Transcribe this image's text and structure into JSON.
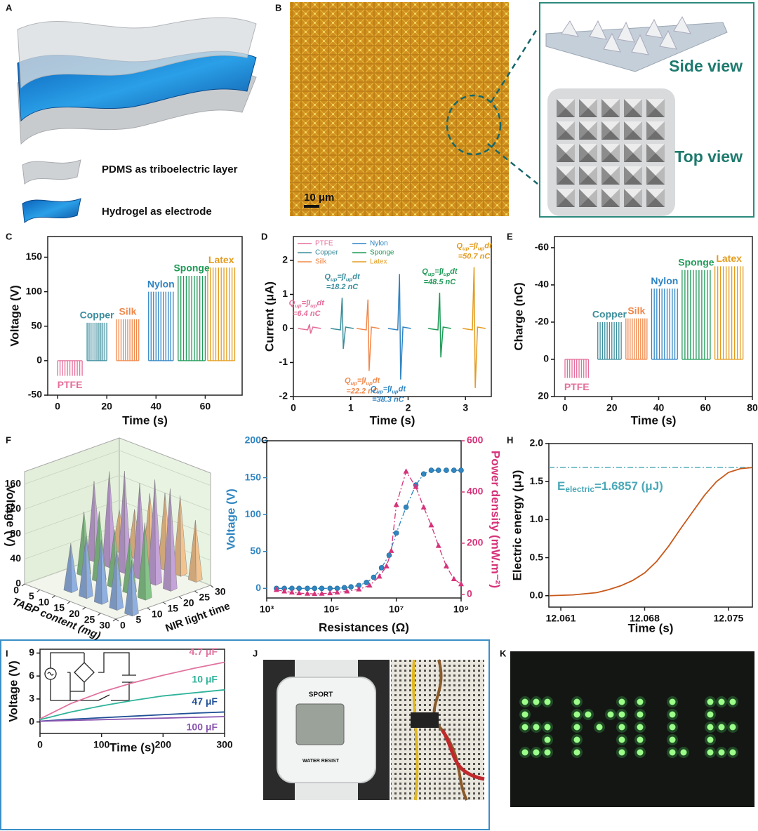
{
  "panels": {
    "A": {
      "letter": "A",
      "labels": [
        "PDMS as triboelectric layer",
        "Hydrogel as electrode"
      ]
    },
    "B": {
      "letter": "B",
      "scale_bar": "10 μm",
      "views": [
        "Side view",
        "Top view"
      ]
    },
    "J": {
      "letter": "J",
      "watch": [
        "SPORT",
        "WATER RESIST"
      ]
    },
    "K": {
      "letter": "K"
    }
  },
  "chart_data": [
    {
      "panel": "C",
      "type": "pulse",
      "xlabel": "Time (s)",
      "ylabel": "Voltage (V)",
      "xlim": [
        -4,
        75
      ],
      "xticks": [
        0,
        20,
        40,
        60
      ],
      "ylim": [
        -50,
        180
      ],
      "yticks": [
        -50,
        0,
        50,
        100,
        150
      ],
      "series": [
        {
          "name": "PTFE",
          "color": "#e46e9a",
          "x": [
            0,
            10
          ],
          "values": [
            0,
            -22
          ]
        },
        {
          "name": "Copper",
          "color": "#3b8d9c",
          "x": [
            12,
            20
          ],
          "values": [
            0,
            55
          ]
        },
        {
          "name": "Silk",
          "color": "#f0874a",
          "x": [
            24,
            33
          ],
          "values": [
            0,
            60
          ]
        },
        {
          "name": "Nylon",
          "color": "#2f84c3",
          "x": [
            37,
            47
          ],
          "values": [
            0,
            100
          ]
        },
        {
          "name": "Sponge",
          "color": "#1e9a57",
          "x": [
            49,
            60
          ],
          "values": [
            0,
            123
          ]
        },
        {
          "name": "Latex",
          "color": "#e39c1e",
          "x": [
            61,
            72
          ],
          "values": [
            0,
            135
          ]
        }
      ]
    },
    {
      "panel": "D",
      "type": "spike",
      "xlabel": "Time (s)",
      "ylabel": "Current (μA)",
      "xlim": [
        0,
        3.45
      ],
      "xticks": [
        0,
        1,
        2,
        3
      ],
      "ylim": [
        -2,
        2.7
      ],
      "yticks": [
        -2,
        -1,
        0,
        1,
        2
      ],
      "formula": [
        "Q",
        "up",
        "=∫",
        "I",
        "up",
        "dt"
      ],
      "series": [
        {
          "name": "PTFE",
          "color": "#e46e9a",
          "x": 0.28,
          "values": [
            0.12,
            -0.15
          ],
          "charge": "=6.4 nC"
        },
        {
          "name": "Copper",
          "color": "#3b8d9c",
          "x": 0.85,
          "values": [
            0.9,
            -0.6
          ],
          "charge": "=18.2 nC"
        },
        {
          "name": "Silk",
          "color": "#f0874a",
          "x": 1.3,
          "values": [
            0.85,
            -1.25
          ],
          "charge": "=22.2 nC"
        },
        {
          "name": "Nylon",
          "color": "#2f84c3",
          "x": 1.85,
          "values": [
            1.6,
            -1.5
          ],
          "charge": "=38.3 nC"
        },
        {
          "name": "Sponge",
          "color": "#1e9a57",
          "x": 2.55,
          "values": [
            1.05,
            -0.85
          ],
          "charge": "=48.5 nC"
        },
        {
          "name": "Latex",
          "color": "#e39c1e",
          "x": 3.15,
          "values": [
            1.8,
            -1.75
          ],
          "charge": "=50.7 nC"
        }
      ]
    },
    {
      "panel": "E",
      "type": "pulse",
      "xlabel": "Time (s)",
      "ylabel": "Charge (nC)",
      "xlim": [
        -4.5,
        80
      ],
      "xticks": [
        0,
        20,
        40,
        60,
        80
      ],
      "ylim": [
        20,
        -66
      ],
      "yticks": [
        -60,
        -40,
        -20,
        0,
        20
      ],
      "series": [
        {
          "name": "PTFE",
          "color": "#e46e9a",
          "x": [
            0,
            10
          ],
          "values": [
            0,
            10
          ]
        },
        {
          "name": "Copper",
          "color": "#3b8d9c",
          "x": [
            14,
            24
          ],
          "values": [
            0,
            -20
          ]
        },
        {
          "name": "Silk",
          "color": "#f0874a",
          "x": [
            26,
            35
          ],
          "values": [
            0,
            -22
          ]
        },
        {
          "name": "Nylon",
          "color": "#2f84c3",
          "x": [
            37,
            48
          ],
          "values": [
            0,
            -38
          ]
        },
        {
          "name": "Sponge",
          "color": "#1e9a57",
          "x": [
            50,
            62
          ],
          "values": [
            0,
            -48
          ]
        },
        {
          "name": "Latex",
          "color": "#e39c1e",
          "x": [
            64,
            76
          ],
          "values": [
            0,
            -50
          ]
        }
      ]
    },
    {
      "panel": "F",
      "type": "bar3d",
      "ylabel": "Voltage (V)",
      "xlabel": "TABP content (mg)",
      "zlabel": "NIR light time",
      "xlim": [
        0,
        30
      ],
      "xticks": [
        0,
        5,
        10,
        15,
        20,
        25,
        30
      ],
      "zlim": [
        0,
        30
      ],
      "zticks": [
        0,
        5,
        10,
        15,
        20,
        25,
        30
      ],
      "ylim": [
        0,
        180
      ],
      "yticks": [
        0,
        40,
        80,
        120,
        160
      ],
      "series": [
        {
          "color": "#f2c38f",
          "x": [
            0,
            5,
            10,
            15,
            20,
            25
          ],
          "z": [
            30,
            30,
            30,
            30,
            30,
            30
          ],
          "values": [
            65,
            75,
            110,
            120,
            125,
            95
          ]
        },
        {
          "color": "#c4a3d8",
          "x": [
            0,
            5,
            10,
            15,
            20,
            25
          ],
          "z": [
            22,
            22,
            22,
            22,
            22,
            22
          ],
          "values": [
            125,
            150,
            160,
            150,
            165,
            160
          ]
        },
        {
          "color": "#86c48a",
          "x": [
            5,
            10,
            15,
            20,
            25
          ],
          "z": [
            14,
            14,
            14,
            14,
            14
          ],
          "values": [
            100,
            110,
            90,
            85,
            120
          ]
        },
        {
          "color": "#8fb0e0",
          "x": [
            10,
            15,
            20,
            25,
            30
          ],
          "z": [
            5,
            5,
            5,
            5,
            5
          ],
          "values": [
            75,
            95,
            100,
            90,
            85
          ]
        }
      ]
    },
    {
      "panel": "G",
      "type": "line",
      "xlabel": "Resistances (Ω)",
      "ylabel": "Voltage (V)",
      "y2label": "Power density (mW.m⁻²)",
      "xlog": true,
      "xlim": [
        1000,
        1000000000
      ],
      "xticks": [
        {
          "value": 1000,
          "label": "10³"
        },
        {
          "value": 100000,
          "label": "10⁵"
        },
        {
          "value": 10000000,
          "label": "10⁷"
        },
        {
          "value": 1000000000,
          "label": "10⁹"
        }
      ],
      "ylim": [
        -13,
        200
      ],
      "yticks": [
        0,
        50,
        100,
        150,
        200
      ],
      "y2lim": [
        -14,
        600
      ],
      "y2ticks": [
        0,
        200,
        400,
        600
      ],
      "series": [
        {
          "color": "#2f86c1",
          "marker": "circle",
          "x": [
            2000,
            3500,
            6000,
            10000,
            18000,
            30000,
            50000,
            90000,
            150000,
            250000,
            400000,
            700000,
            1200000,
            2000000,
            3500000,
            6000000,
            10000000,
            20000000,
            40000000,
            70000000,
            120000000,
            200000000,
            350000000,
            600000000,
            1000000000
          ],
          "values": [
            0,
            0,
            0,
            0,
            0,
            0,
            0,
            0,
            0,
            1,
            2,
            4,
            8,
            15,
            28,
            45,
            75,
            110,
            140,
            155,
            160,
            160,
            160,
            160,
            160
          ]
        },
        {
          "color": "#d6337a",
          "marker": "triangle",
          "axis": "y2",
          "x": [
            2000,
            3500,
            6000,
            10000,
            18000,
            30000,
            50000,
            90000,
            150000,
            300000,
            700000,
            1500000,
            3000000,
            5000000,
            7000000,
            10000000,
            20000000,
            40000000,
            70000000,
            120000000,
            200000000,
            350000000,
            600000000,
            1000000000
          ],
          "values": [
            18,
            12,
            8,
            5,
            3,
            2,
            3,
            5,
            8,
            12,
            20,
            35,
            70,
            110,
            170,
            350,
            480,
            420,
            340,
            270,
            190,
            110,
            60,
            40
          ]
        }
      ]
    },
    {
      "panel": "H",
      "type": "line",
      "xlabel": "Time (s)",
      "ylabel": "Electric energy (μJ)",
      "xlim": [
        12.06,
        12.077
      ],
      "xticks": [
        12.061,
        12.068,
        12.075
      ],
      "ylim": [
        -0.15,
        2
      ],
      "yticks": [
        {
          "value": 0,
          "label": "0.0"
        },
        0.5,
        {
          "value": 1,
          "label": "1.0"
        },
        1.5,
        {
          "value": 2,
          "label": "2.0"
        }
      ],
      "reference": 1.6857,
      "reference_label": [
        "E",
        "electric",
        "=1.6857 (μJ)"
      ],
      "reference_color": "#4aa8b8",
      "series": [
        {
          "color": "#c8581a",
          "x": [
            12.06,
            12.062,
            12.064,
            12.065,
            12.066,
            12.067,
            12.068,
            12.069,
            12.07,
            12.071,
            12.072,
            12.073,
            12.074,
            12.075,
            12.076,
            12.077
          ],
          "values": [
            0,
            0.01,
            0.04,
            0.08,
            0.13,
            0.2,
            0.3,
            0.45,
            0.65,
            0.88,
            1.1,
            1.32,
            1.5,
            1.62,
            1.67,
            1.685
          ]
        }
      ]
    },
    {
      "panel": "I",
      "type": "line",
      "xlabel": "Time (s)",
      "ylabel": "Voltage (V)",
      "xlim": [
        0,
        300
      ],
      "xticks": [
        0,
        100,
        200,
        300
      ],
      "ylim": [
        -1.5,
        9.5
      ],
      "yticks": [
        0,
        3,
        6,
        9
      ],
      "x": [
        0,
        50,
        100,
        150,
        200,
        250,
        300
      ],
      "series": [
        {
          "name": "4.7 μF",
          "color": "#e0739f",
          "values": [
            0.4,
            2.4,
            3.9,
            5.1,
            6.1,
            7,
            7.8
          ]
        },
        {
          "name": "10 μF",
          "color": "#2fb39a",
          "values": [
            0.3,
            1.3,
            2.1,
            2.8,
            3.4,
            3.8,
            4.2
          ]
        },
        {
          "name": "47 μF",
          "color": "#1f4f96",
          "values": [
            0.1,
            0.35,
            0.55,
            0.75,
            0.95,
            1.15,
            1.3
          ]
        },
        {
          "name": "100 μF",
          "color": "#8a55b0",
          "values": [
            0.1,
            0.2,
            0.3,
            0.4,
            0.5,
            0.6,
            0.7
          ]
        }
      ]
    }
  ]
}
